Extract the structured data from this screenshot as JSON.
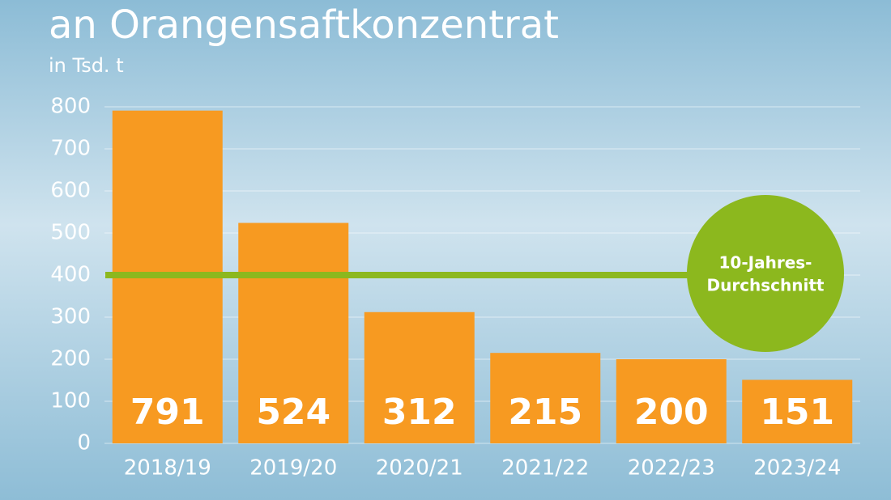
{
  "chart_data": {
    "type": "bar",
    "title": "an Orangensaftkonzentrat",
    "subtitle": "in Tsd. t",
    "categories": [
      "2018/19",
      "2019/20",
      "2020/21",
      "2021/22",
      "2022/23",
      "2023/24"
    ],
    "values": [
      791,
      524,
      312,
      215,
      200,
      151
    ],
    "color": "#f79a21",
    "ylim": [
      0,
      800
    ],
    "yticks": [
      0,
      100,
      200,
      300,
      400,
      500,
      600,
      700,
      800
    ],
    "grid": true,
    "reference_line": {
      "value": 400,
      "label": [
        "10-Jahres-",
        "Durchschnitt"
      ],
      "color": "#8cb81e"
    }
  }
}
